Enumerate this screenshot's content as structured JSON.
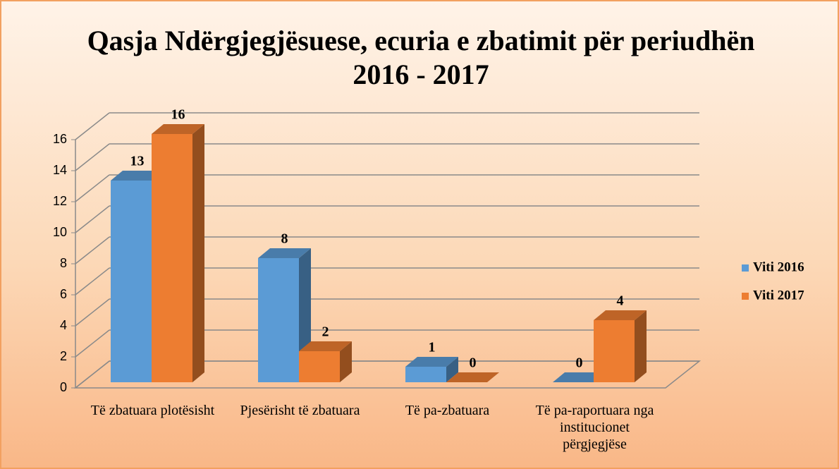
{
  "chart_data": {
    "type": "bar",
    "title": "Qasja Ndërgjegjësuese, ecuria e zbatimit për periudhën 2016 - 2017",
    "categories": [
      "Të zbatuara plotësisht",
      "Pjesërisht të zbatuara",
      "Të pa-zbatuara",
      "Të pa-raportuara nga institucionet përgjegjëse"
    ],
    "series": [
      {
        "name": "Viti 2016",
        "color": "#5b9bd5",
        "values": [
          13,
          8,
          1,
          0
        ]
      },
      {
        "name": "Viti 2017",
        "color": "#ed7d31",
        "values": [
          16,
          2,
          0,
          4
        ]
      }
    ],
    "ylim": [
      0,
      16
    ],
    "yticks": [
      0,
      2,
      4,
      6,
      8,
      10,
      12,
      14,
      16
    ],
    "grid": true,
    "legend": "right"
  }
}
